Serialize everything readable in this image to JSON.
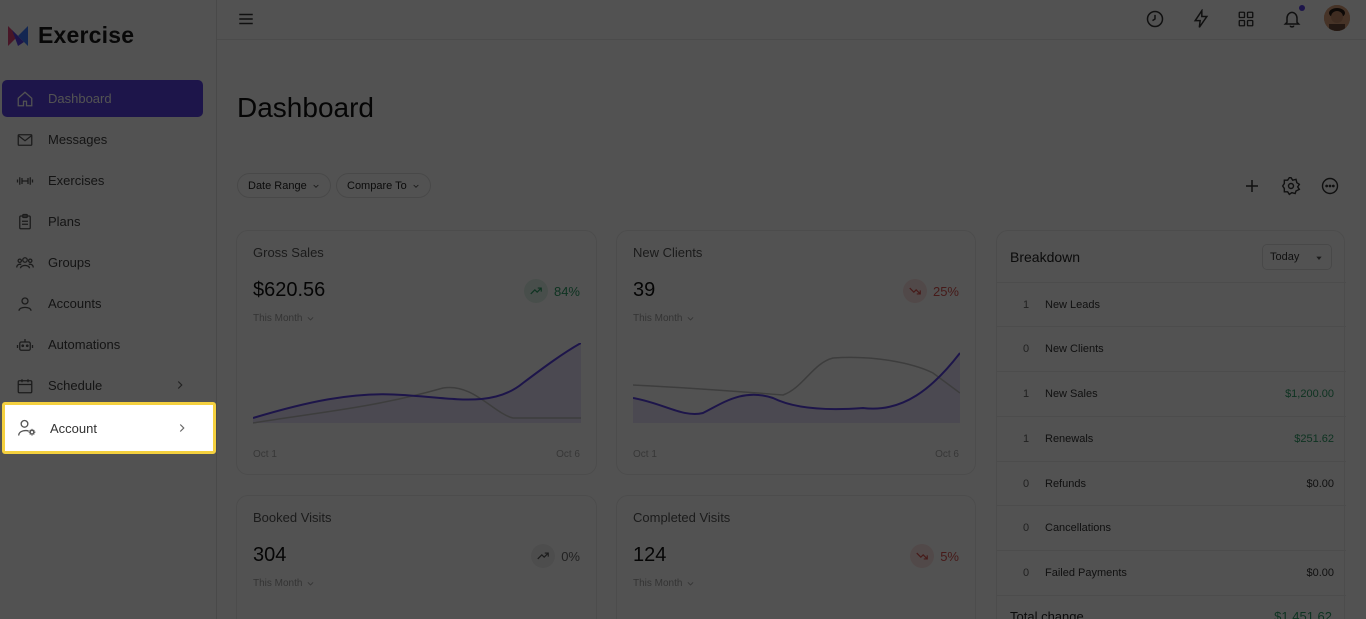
{
  "app": {
    "name": "Exercise"
  },
  "sidebar": {
    "items": [
      {
        "label": "Dashboard",
        "icon": "home-icon"
      },
      {
        "label": "Messages",
        "icon": "mail-icon"
      },
      {
        "label": "Exercises",
        "icon": "dumbbell-icon"
      },
      {
        "label": "Plans",
        "icon": "clipboard-icon"
      },
      {
        "label": "Groups",
        "icon": "users-icon"
      },
      {
        "label": "Accounts",
        "icon": "user-icon"
      },
      {
        "label": "Automations",
        "icon": "robot-icon"
      },
      {
        "label": "Schedule",
        "icon": "calendar-icon"
      },
      {
        "label": "Account",
        "icon": "user-settings-icon"
      }
    ]
  },
  "page": {
    "title": "Dashboard"
  },
  "filters": {
    "date_range": "Date Range",
    "compare_to": "Compare To"
  },
  "cards": {
    "gross_sales": {
      "title": "Gross Sales",
      "value": "$620.56",
      "pct": "84%",
      "period": "This Month",
      "x_start": "Oct 1",
      "x_end": "Oct 6"
    },
    "new_clients": {
      "title": "New Clients",
      "value": "39",
      "pct": "25%",
      "period": "This Month",
      "x_start": "Oct 1",
      "x_end": "Oct 6"
    },
    "booked_visits": {
      "title": "Booked Visits",
      "value": "304",
      "pct": "0%",
      "period": "This Month"
    },
    "completed_visits": {
      "title": "Completed Visits",
      "value": "124",
      "pct": "5%",
      "period": "This Month"
    }
  },
  "breakdown": {
    "title": "Breakdown",
    "select": "Today",
    "rows": [
      {
        "count": "1",
        "label": "New Leads",
        "amount": ""
      },
      {
        "count": "0",
        "label": "New Clients",
        "amount": ""
      },
      {
        "count": "1",
        "label": "New Sales",
        "amount": "$1,200.00"
      },
      {
        "count": "1",
        "label": "Renewals",
        "amount": "$251.62"
      },
      {
        "count": "0",
        "label": "Refunds",
        "amount": "$0.00"
      },
      {
        "count": "0",
        "label": "Cancellations",
        "amount": ""
      },
      {
        "count": "0",
        "label": "Failed Payments",
        "amount": "$0.00"
      }
    ],
    "total_label": "Total change",
    "total_value": "$1,451.62"
  },
  "colors": {
    "accent": "#5b43e6",
    "highlight": "#f4d03f",
    "positive": "#2e9e68",
    "negative": "#d9534f"
  }
}
